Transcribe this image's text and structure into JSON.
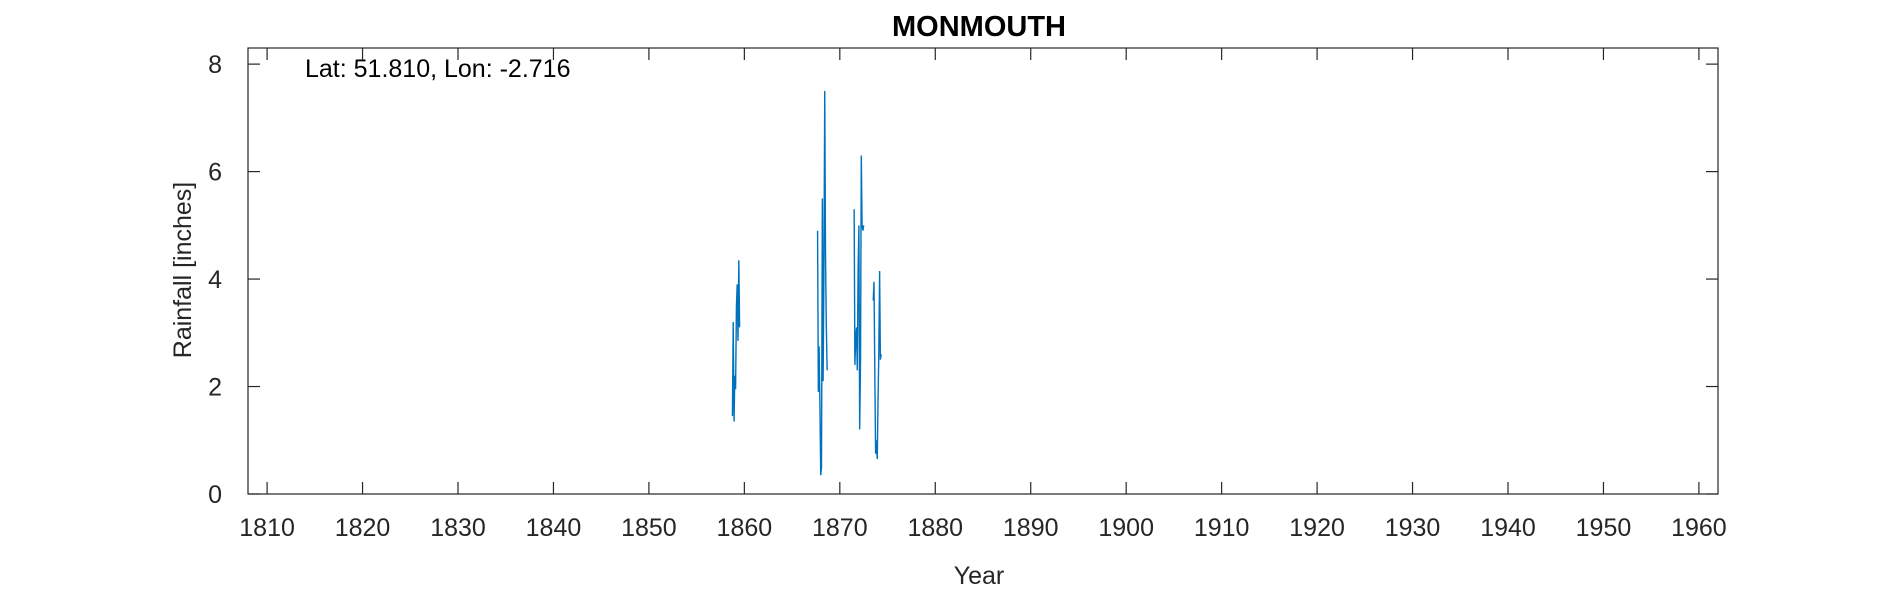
{
  "chart_data": {
    "type": "line",
    "title": "MONMOUTH",
    "xlabel": "Year",
    "ylabel": "Rainfall [inches]",
    "annotation": "Lat: 51.810, Lon: -2.716",
    "xlim": [
      1808,
      1962
    ],
    "ylim": [
      0,
      8.3
    ],
    "xticks": [
      1810,
      1820,
      1830,
      1840,
      1850,
      1860,
      1870,
      1880,
      1890,
      1900,
      1910,
      1920,
      1930,
      1940,
      1950,
      1960
    ],
    "yticks": [
      0,
      2,
      4,
      6,
      8
    ],
    "grid": false,
    "series_color": "#0072BD",
    "series": [
      {
        "segments": [
          {
            "x": [
              1858.75,
              1858.83,
              1858.92,
              1859.0,
              1859.08,
              1859.17,
              1859.25,
              1859.33,
              1859.42,
              1859.5
            ],
            "y": [
              1.45,
              3.2,
              1.35,
              2.2,
              1.95,
              3.5,
              3.9,
              2.85,
              4.35,
              3.1
            ]
          },
          {
            "x": [
              1867.67,
              1867.75,
              1867.83,
              1867.92,
              1868.0,
              1868.08,
              1868.17,
              1868.25,
              1868.33,
              1868.42,
              1868.5,
              1868.58,
              1868.67
            ],
            "y": [
              4.9,
              1.9,
              2.75,
              1.6,
              0.35,
              0.5,
              5.5,
              2.1,
              4.0,
              7.5,
              4.5,
              3.2,
              2.3
            ]
          },
          {
            "x": [
              1871.5,
              1871.58,
              1871.67,
              1871.75,
              1871.83,
              1871.92,
              1872.0,
              1872.08,
              1872.17,
              1872.25,
              1872.33,
              1872.42,
              1872.5
            ],
            "y": [
              5.3,
              2.4,
              2.9,
              3.1,
              2.3,
              4.2,
              5.0,
              1.2,
              2.5,
              6.3,
              5.0,
              4.9,
              5.0
            ]
          },
          {
            "x": [
              1873.5,
              1873.58,
              1873.67,
              1873.75,
              1873.83,
              1873.92,
              1874.0,
              1874.08,
              1874.17,
              1874.25,
              1874.33
            ],
            "y": [
              3.6,
              3.95,
              2.2,
              0.75,
              1.0,
              0.65,
              1.7,
              2.55,
              4.15,
              2.5,
              2.6
            ]
          }
        ]
      }
    ]
  }
}
